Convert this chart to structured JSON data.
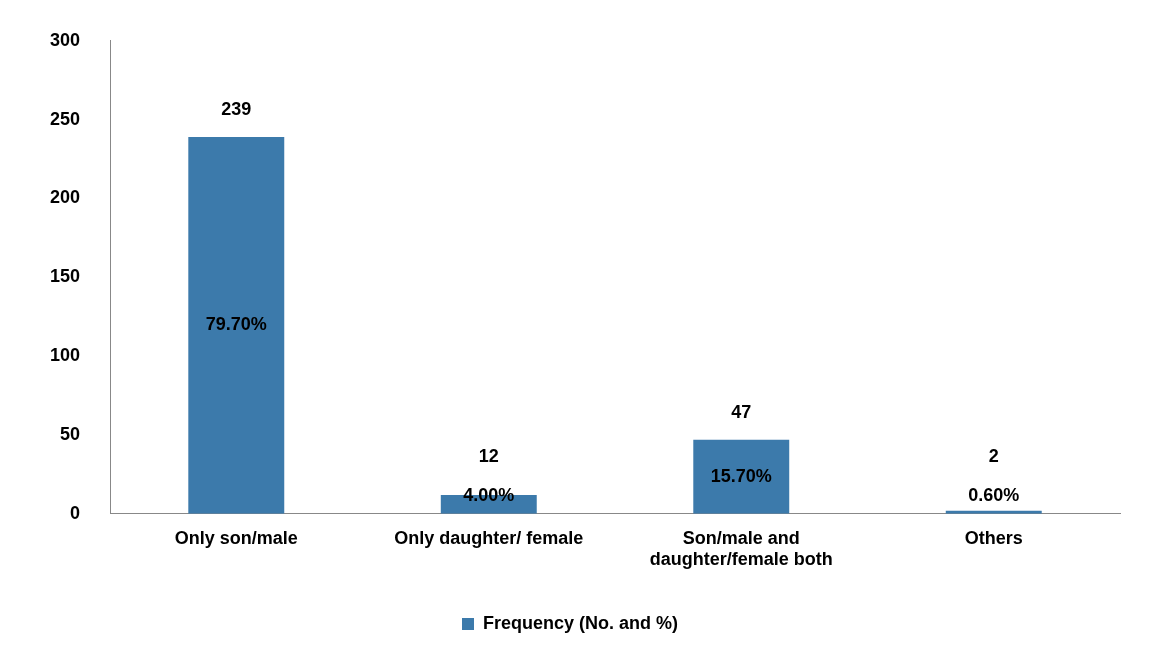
{
  "chart_data": {
    "type": "bar",
    "categories": [
      "Only son/male",
      "Only daughter/ female",
      "Son/male and daughter/female both",
      "Others"
    ],
    "series": [
      {
        "name": "Frequency (No. and %)",
        "color": "#3c7aab",
        "values": [
          239,
          12,
          47,
          2
        ]
      }
    ],
    "ylim": [
      0,
      300
    ],
    "yticks": [
      0,
      50,
      100,
      150,
      200,
      250,
      300
    ],
    "grid": false,
    "legend": "bottom",
    "data_labels": true,
    "annotations": [
      "79.70%",
      "4.00%",
      "15.70%",
      "0.60%"
    ]
  }
}
